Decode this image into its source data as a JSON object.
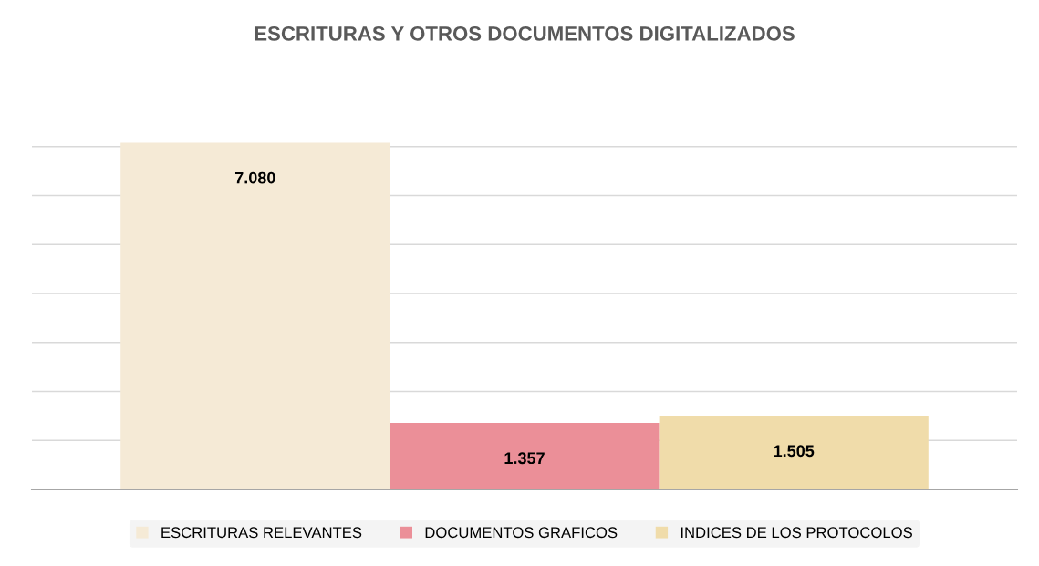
{
  "chart_data": {
    "type": "bar",
    "title": "ESCRITURAS Y OTROS DOCUMENTOS DIGITALIZADOS",
    "categories": [
      null
    ],
    "series": [
      {
        "name": "ESCRITURAS RELEVANTES",
        "color": "#f5ead6",
        "values": [
          7080
        ],
        "value_labels": [
          "7.080"
        ]
      },
      {
        "name": "DOCUMENTOS GRAFICOS",
        "color": "#eb8f98",
        "values": [
          1357
        ],
        "value_labels": [
          "1.357"
        ]
      },
      {
        "name": "INDICES DE LOS PROTOCOLOS",
        "color": "#f0dcaa",
        "values": [
          1505
        ],
        "value_labels": [
          "1.505"
        ]
      }
    ],
    "ylim": [
      0,
      8000
    ],
    "yticks": [
      {
        "value": 0,
        "label": null
      },
      {
        "value": 1000,
        "label": null
      },
      {
        "value": 2000,
        "label": null
      },
      {
        "value": 3000,
        "label": null
      },
      {
        "value": 4000,
        "label": null
      },
      {
        "value": 5000,
        "label": null
      },
      {
        "value": 6000,
        "label": null
      },
      {
        "value": 7000,
        "label": null
      },
      {
        "value": 8000,
        "label": null
      }
    ],
    "grid": "y",
    "legend": "bottom"
  }
}
